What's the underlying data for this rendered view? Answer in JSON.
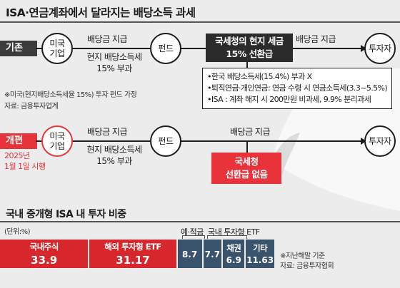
{
  "title": "ISA·연금계좌에서 달라지는 배당소득 과세",
  "current": {
    "tag": "기존",
    "investor": "미국\n기업",
    "flow1_top": "배당금 지급",
    "flow1_bottom": "현지 배당소득세\n15% 부과",
    "fund": "펀드",
    "tax_box": "국세청의 현지 세금\n15% 선환급",
    "flow2_top": "배당금 지급",
    "investor_end": "투자자",
    "notes": [
      "•한국 배당소득세(15.4%) 부과 X",
      "•퇴직연금·개인연금: 연금 수령 시 연금소득세(3.3~5.5%)",
      "•ISA : 계좌 해지 시 200만원 비과세, 9.9% 분리과세"
    ],
    "footnote1": "※미국(현지배당소득세율 15%) 투자 펀드 가정",
    "footnote2": "자료: 금융투자업계"
  },
  "reform": {
    "tag": "개편",
    "date": "2025년\n1월 1일 시행",
    "investor": "미국\n기업",
    "flow1_top": "배당금 지급",
    "flow1_bottom": "현지 배당소득세\n15% 부과",
    "fund": "펀드",
    "flow2_top": "배당금 지급",
    "tax_box": "국세청\n선환급 없음",
    "investor_end": "투자자"
  },
  "share_section": {
    "title": "국내 중개형 ISA 내 투자 비중",
    "unit": "(단위:%)",
    "group_label_1": "예·적금",
    "group_label_2": "국내 투자형 ETF",
    "footnote1": "※지난해말 기준",
    "footnote2": "자료: 금융투자협회",
    "segments": [
      {
        "name": "국내주식",
        "value": "33.9",
        "color": "#d8262d"
      },
      {
        "name": "해외 투자형 ETF",
        "value": "31.17",
        "color": "#d8262d"
      },
      {
        "name": "",
        "value": "8.7",
        "color": "#38536b"
      },
      {
        "name": "",
        "value": "7.7",
        "color": "#38536b"
      },
      {
        "name": "채권",
        "value": "6.9",
        "color": "#38536b"
      },
      {
        "name": "기타",
        "value": "11.63",
        "color": "#38536b"
      }
    ]
  },
  "colors": {
    "accent_red": "#e8333a",
    "dark": "#2b2b2b",
    "blue": "#38536b"
  }
}
